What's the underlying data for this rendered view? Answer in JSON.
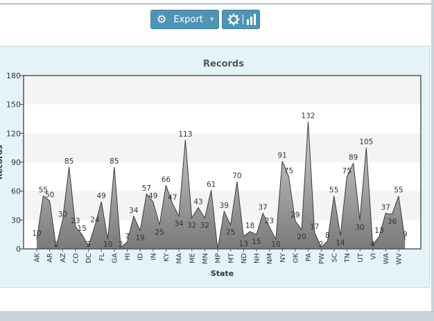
{
  "toolbar": {
    "export_label": "Export",
    "export_icon": "gear-icon",
    "settings_icons": [
      "gear-icon",
      "bar-chart-icon"
    ]
  },
  "colors": {
    "button": "#4f95b3",
    "panel_bg": "#e4f3f8",
    "area_fill_top": "#d0d0d0",
    "area_fill_bottom": "#7a7a7a",
    "plot_band": "#f4f4f4"
  },
  "chart_data": {
    "type": "area",
    "title": "Records",
    "xlabel": "State",
    "ylabel": "Records",
    "ylim": [
      0,
      180
    ],
    "yticks": [
      0,
      30,
      60,
      90,
      120,
      150,
      180
    ],
    "grid": "horizontal bands",
    "x_tick_labels": [
      "AK",
      "AR",
      "AZ",
      "CO",
      "DC",
      "FL",
      "GA",
      "HI",
      "ID",
      "IN",
      "KY",
      "MA",
      "ME",
      "MN",
      "MP",
      "MT",
      "ND",
      "NH",
      "NM",
      "NY",
      "OK",
      "PA",
      "PW",
      "SC",
      "TN",
      "UT",
      "VI",
      "WA",
      "WV"
    ],
    "values": [
      10,
      55,
      50,
      2,
      30,
      85,
      23,
      15,
      3,
      24,
      49,
      10,
      85,
      2,
      7,
      34,
      19,
      57,
      49,
      25,
      66,
      47,
      34,
      113,
      32,
      43,
      32,
      61,
      0,
      39,
      25,
      70,
      13,
      18,
      15,
      37,
      23,
      10,
      91,
      75,
      29,
      20,
      132,
      17,
      2,
      8,
      55,
      14,
      75,
      89,
      30,
      105,
      4,
      13,
      37,
      36,
      55,
      9
    ],
    "data_labels": [
      "10",
      "55",
      "50",
      "2",
      "30",
      "85",
      "23",
      "15",
      "3",
      "24",
      "49",
      "10",
      "85",
      "2",
      "7",
      "34",
      "19",
      "57",
      "49",
      "25",
      "66",
      "47",
      "34",
      "113",
      "32",
      "43",
      "32",
      "61",
      "",
      "39",
      "25",
      "70",
      "13",
      "18",
      "15",
      "37",
      "23",
      "10",
      "91",
      "75",
      "29",
      "20",
      "132",
      "17",
      "2",
      "8",
      "55",
      "14",
      "75",
      "89",
      "30",
      "105",
      "4",
      "13",
      "37",
      "36",
      "55",
      "9"
    ]
  }
}
